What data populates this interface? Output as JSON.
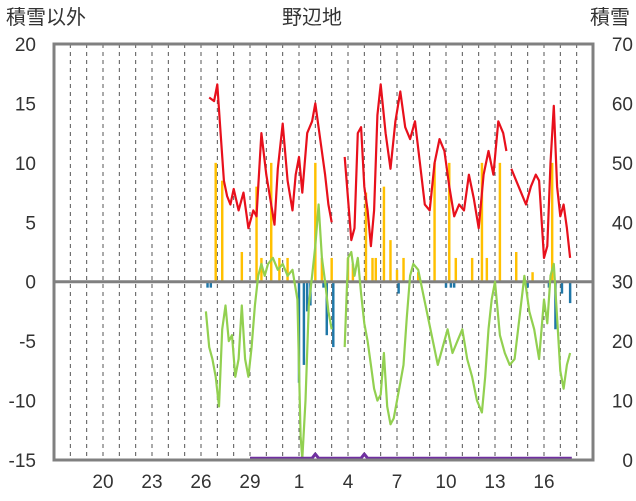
{
  "chart_data": {
    "type": "line",
    "title": "野辺地",
    "ylabel_left": "積雪以外",
    "ylabel_right": "積雪",
    "ylim_left": [
      -15,
      20
    ],
    "ylim_right": [
      0,
      70
    ],
    "yticks_left": [
      "20",
      "15",
      "10",
      "5",
      "0",
      "-5",
      "-10",
      "-15"
    ],
    "yticks_right": [
      "70",
      "60",
      "50",
      "40",
      "30",
      "20",
      "10",
      "0"
    ],
    "x_range_days": [
      17,
      50
    ],
    "xticks": [
      {
        "label": "20",
        "day": 20
      },
      {
        "label": "23",
        "day": 23
      },
      {
        "label": "26",
        "day": 26
      },
      {
        "label": "29",
        "day": 29
      },
      {
        "label": "1",
        "day": 32
      },
      {
        "label": "4",
        "day": 35
      },
      {
        "label": "7",
        "day": 38
      },
      {
        "label": "10",
        "day": 41
      },
      {
        "label": "13",
        "day": 44
      },
      {
        "label": "16",
        "day": 47
      }
    ],
    "grid": "vertical dashed, daily",
    "colors": {
      "max_temp": "#e8101c",
      "min_temp": "#92d050",
      "snowfall_positive": "#ffc000",
      "snowfall_negative": "#1f77a8",
      "snow_depth": "#7030a0",
      "zero_line": "#808080"
    },
    "series": [
      {
        "key": "max_temp",
        "axis": "left",
        "points": [
          [
            26.5,
            15.5
          ],
          [
            26.8,
            15.2
          ],
          [
            27.0,
            16.6
          ],
          [
            27.2,
            12.5
          ],
          [
            27.4,
            8.5
          ],
          [
            27.6,
            7.2
          ],
          [
            27.8,
            6.5
          ],
          [
            28.0,
            7.8
          ],
          [
            28.3,
            6.0
          ],
          [
            28.6,
            7.5
          ],
          [
            28.9,
            4.5
          ],
          [
            29.2,
            6.0
          ],
          [
            29.4,
            5.5
          ],
          [
            29.7,
            12.5
          ],
          [
            30.0,
            9.0
          ],
          [
            30.3,
            6.5
          ],
          [
            30.5,
            4.8
          ],
          [
            30.7,
            9.5
          ],
          [
            31.0,
            13.3
          ],
          [
            31.3,
            8.5
          ],
          [
            31.6,
            6.0
          ],
          [
            31.8,
            9.0
          ],
          [
            32.0,
            10.5
          ],
          [
            32.2,
            7.5
          ],
          [
            32.5,
            12.5
          ],
          [
            32.8,
            13.5
          ],
          [
            33.0,
            15.0
          ],
          [
            33.3,
            12.0
          ],
          [
            33.6,
            9.0
          ],
          [
            33.8,
            6.5
          ],
          [
            34.0,
            5.0
          ]
        ]
      },
      {
        "key": "max_temp",
        "axis": "left",
        "points": [
          [
            34.8,
            10.5
          ],
          [
            35.0,
            7.0
          ],
          [
            35.2,
            3.5
          ],
          [
            35.4,
            4.5
          ],
          [
            35.6,
            12.5
          ],
          [
            35.8,
            13.0
          ],
          [
            36.0,
            8.0
          ],
          [
            36.2,
            6.0
          ],
          [
            36.4,
            3.0
          ],
          [
            36.6,
            6.0
          ],
          [
            36.8,
            14.0
          ],
          [
            37.0,
            16.6
          ],
          [
            37.3,
            12.5
          ],
          [
            37.6,
            9.5
          ],
          [
            37.9,
            13.5
          ],
          [
            38.2,
            16.0
          ],
          [
            38.5,
            13.0
          ],
          [
            38.8,
            12.0
          ],
          [
            39.1,
            13.5
          ],
          [
            39.4,
            10.0
          ],
          [
            39.7,
            6.5
          ],
          [
            40.0,
            6.0
          ],
          [
            40.3,
            10.0
          ],
          [
            40.6,
            12.0
          ],
          [
            40.9,
            11.0
          ],
          [
            41.2,
            8.0
          ],
          [
            41.5,
            5.5
          ],
          [
            41.8,
            6.5
          ],
          [
            42.1,
            6.0
          ],
          [
            42.4,
            9.0
          ],
          [
            42.7,
            7.0
          ],
          [
            43.0,
            4.5
          ],
          [
            43.3,
            9.0
          ],
          [
            43.6,
            11.0
          ],
          [
            43.9,
            9.0
          ],
          [
            44.2,
            13.5
          ],
          [
            44.5,
            12.5
          ],
          [
            44.7,
            11.0
          ]
        ]
      },
      {
        "key": "max_temp",
        "axis": "left",
        "points": [
          [
            45.0,
            9.5
          ],
          [
            45.3,
            8.5
          ],
          [
            45.6,
            7.5
          ],
          [
            45.9,
            6.5
          ],
          [
            46.2,
            8.0
          ],
          [
            46.5,
            9.0
          ],
          [
            46.7,
            8.5
          ],
          [
            47.0,
            2.0
          ],
          [
            47.2,
            3.0
          ],
          [
            47.4,
            10.0
          ],
          [
            47.6,
            14.8
          ],
          [
            47.8,
            8.0
          ],
          [
            48.0,
            5.5
          ],
          [
            48.2,
            6.5
          ],
          [
            48.4,
            4.5
          ],
          [
            48.6,
            2.0
          ]
        ]
      },
      {
        "key": "min_temp",
        "axis": "left",
        "points": [
          [
            26.3,
            -2.5
          ],
          [
            26.5,
            -5.5
          ],
          [
            26.7,
            -6.5
          ],
          [
            26.9,
            -8.0
          ],
          [
            27.1,
            -10.5
          ],
          [
            27.3,
            -4.0
          ],
          [
            27.5,
            -2.0
          ],
          [
            27.7,
            -5.0
          ],
          [
            27.9,
            -4.5
          ],
          [
            28.1,
            -8.0
          ],
          [
            28.3,
            -6.5
          ],
          [
            28.5,
            -2.0
          ],
          [
            28.7,
            -6.5
          ],
          [
            28.9,
            -8.0
          ],
          [
            29.1,
            -5.5
          ],
          [
            29.3,
            -2.0
          ],
          [
            29.5,
            0.5
          ],
          [
            29.7,
            1.5
          ],
          [
            29.9,
            0.5
          ],
          [
            30.1,
            1.5
          ],
          [
            30.4,
            2.0
          ],
          [
            30.7,
            1.0
          ],
          [
            31.0,
            1.5
          ],
          [
            31.3,
            0.5
          ],
          [
            31.6,
            1.0
          ],
          [
            31.9,
            -1.5
          ],
          [
            32.1,
            -13.0
          ],
          [
            32.2,
            -14.9
          ],
          [
            32.4,
            -10.0
          ],
          [
            32.6,
            -2.0
          ],
          [
            32.8,
            0.5
          ],
          [
            33.0,
            3.0
          ],
          [
            33.2,
            6.5
          ],
          [
            33.4,
            2.0
          ],
          [
            33.6,
            0.0
          ],
          [
            33.8,
            -2.5
          ],
          [
            34.0,
            -4.0
          ]
        ]
      },
      {
        "key": "min_temp",
        "axis": "left",
        "points": [
          [
            34.8,
            -5.5
          ],
          [
            35.0,
            2.0
          ],
          [
            35.2,
            2.5
          ],
          [
            35.4,
            0.5
          ],
          [
            35.6,
            2.0
          ],
          [
            35.8,
            -1.0
          ],
          [
            36.0,
            -3.5
          ],
          [
            36.2,
            -5.0
          ],
          [
            36.4,
            -7.0
          ],
          [
            36.6,
            -9.0
          ],
          [
            36.8,
            -10.0
          ],
          [
            37.0,
            -9.5
          ],
          [
            37.2,
            -6.0
          ],
          [
            37.4,
            -10.5
          ],
          [
            37.6,
            -12.0
          ],
          [
            37.8,
            -11.5
          ],
          [
            38.0,
            -10.0
          ],
          [
            38.2,
            -8.5
          ],
          [
            38.4,
            -7.0
          ],
          [
            38.6,
            -3.0
          ],
          [
            38.8,
            0.5
          ],
          [
            39.0,
            1.5
          ],
          [
            39.3,
            1.0
          ],
          [
            39.6,
            -1.0
          ],
          [
            39.9,
            -3.0
          ],
          [
            40.2,
            -5.0
          ],
          [
            40.5,
            -7.0
          ],
          [
            40.8,
            -5.5
          ],
          [
            41.1,
            -4.0
          ],
          [
            41.4,
            -6.0
          ],
          [
            41.7,
            -5.0
          ],
          [
            42.0,
            -4.0
          ],
          [
            42.3,
            -6.5
          ],
          [
            42.6,
            -8.0
          ],
          [
            42.9,
            -10.0
          ],
          [
            43.2,
            -11.0
          ],
          [
            43.4,
            -8.0
          ],
          [
            43.6,
            -4.0
          ],
          [
            43.8,
            -1.5
          ],
          [
            44.0,
            0.0
          ],
          [
            44.3,
            -4.5
          ],
          [
            44.6,
            -6.0
          ],
          [
            44.9,
            -7.0
          ],
          [
            45.2,
            -6.5
          ],
          [
            45.5,
            -3.0
          ],
          [
            45.8,
            0.5
          ],
          [
            46.1,
            -2.5
          ],
          [
            46.4,
            -4.0
          ],
          [
            46.7,
            -6.5
          ],
          [
            47.0,
            -1.5
          ],
          [
            47.2,
            -3.5
          ],
          [
            47.4,
            0.5
          ],
          [
            47.6,
            1.5
          ],
          [
            47.8,
            -3.0
          ],
          [
            48.0,
            -7.5
          ],
          [
            48.2,
            -9.0
          ],
          [
            48.4,
            -7.0
          ],
          [
            48.6,
            -6.0
          ]
        ]
      },
      {
        "key": "snow_depth",
        "axis": "right",
        "points": [
          [
            29.0,
            0.3
          ],
          [
            32.8,
            0.3
          ],
          [
            33.0,
            1.0
          ],
          [
            33.2,
            0.3
          ],
          [
            35.8,
            0.3
          ],
          [
            36.0,
            1.0
          ],
          [
            36.2,
            0.3
          ],
          [
            48.7,
            0.3
          ]
        ]
      }
    ],
    "bars": {
      "axis": "left",
      "width_days": 0.15,
      "positive": [
        [
          26.9,
          10.0
        ],
        [
          27.3,
          8.5
        ],
        [
          28.5,
          2.5
        ],
        [
          29.4,
          8.0
        ],
        [
          29.7,
          2.0
        ],
        [
          30.3,
          10.0
        ],
        [
          30.8,
          2.0
        ],
        [
          31.3,
          2.0
        ],
        [
          33.0,
          10.0
        ],
        [
          33.4,
          2.0
        ],
        [
          34.0,
          2.0
        ],
        [
          35.0,
          2.0
        ],
        [
          35.3,
          1.5
        ],
        [
          36.1,
          7.5
        ],
        [
          36.5,
          2.0
        ],
        [
          36.7,
          2.0
        ],
        [
          37.2,
          8.0
        ],
        [
          37.6,
          3.5
        ],
        [
          38.0,
          1.0
        ],
        [
          38.4,
          2.0
        ],
        [
          39.3,
          0.8
        ],
        [
          40.3,
          10.0
        ],
        [
          41.2,
          10.0
        ],
        [
          41.6,
          2.0
        ],
        [
          42.6,
          2.0
        ],
        [
          43.2,
          10.0
        ],
        [
          43.5,
          2.0
        ],
        [
          44.3,
          10.0
        ],
        [
          45.3,
          2.5
        ],
        [
          46.3,
          0.8
        ],
        [
          47.5,
          10.0
        ]
      ],
      "negative": [
        [
          26.4,
          -0.5
        ],
        [
          26.6,
          -0.5
        ],
        [
          32.0,
          -8.5
        ],
        [
          32.3,
          -7.0
        ],
        [
          32.5,
          -2.5
        ],
        [
          32.7,
          -2.0
        ],
        [
          33.5,
          -0.5
        ],
        [
          33.7,
          -4.5
        ],
        [
          34.1,
          -5.5
        ],
        [
          38.1,
          -1.0
        ],
        [
          41.0,
          -0.5
        ],
        [
          41.3,
          -0.5
        ],
        [
          41.5,
          -0.5
        ],
        [
          46.0,
          -0.5
        ],
        [
          47.3,
          -0.5
        ],
        [
          47.7,
          -4.0
        ],
        [
          48.1,
          -1.0
        ],
        [
          48.6,
          -1.8
        ]
      ]
    }
  }
}
